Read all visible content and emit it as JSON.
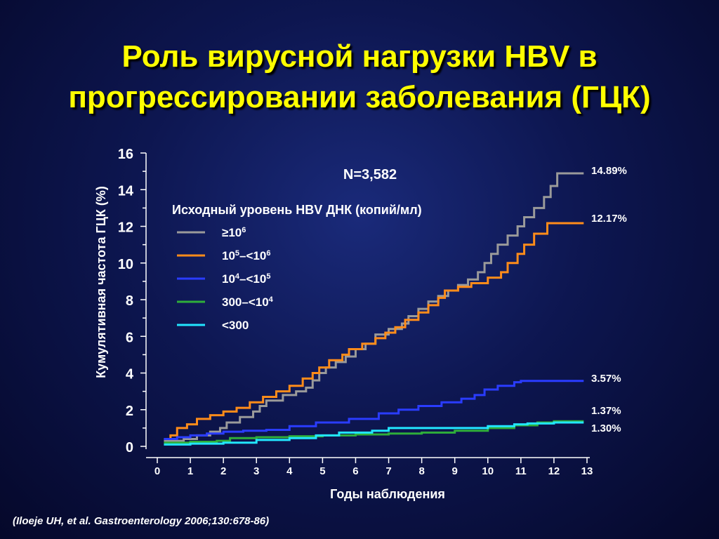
{
  "title": {
    "line1": "Роль вирусной нагрузки HBV в",
    "line2": "прогрессировании заболевания (ГЦК)"
  },
  "citation": "(Iloeje UH, et al. Gastroenterology 2006;130:678-86)",
  "colors": {
    "title": "#ffff00",
    "grey_series": "#9a9a9a",
    "orange_series": "#ff8c1a",
    "blue_series": "#2a3cff",
    "green_series": "#2fae3a",
    "cyan_series": "#22e6ff"
  },
  "chart_data": {
    "type": "line",
    "line_style": "step",
    "ylabel": "Кумулятивная частота ГЦК (%)",
    "xlabel": "Годы наблюдения",
    "annotation": "N=3,582",
    "legend_title": "Исходный уровень HBV ДНК (копий/мл)",
    "legend_position": "top-left",
    "xlim": [
      0,
      13
    ],
    "ylim": [
      0,
      16
    ],
    "x_ticks": [
      0,
      1,
      2,
      3,
      4,
      5,
      6,
      7,
      8,
      9,
      10,
      11,
      12,
      13
    ],
    "y_ticks": [
      0,
      2,
      4,
      6,
      8,
      10,
      12,
      14,
      16
    ],
    "series": [
      {
        "name": "≥10^6",
        "legend_base": "≥10",
        "legend_sup1": "6",
        "legend_mid": "",
        "legend_sup2": "",
        "color": "#9a9a9a",
        "end_label": "14.89%",
        "points": [
          [
            0.2,
            0.3
          ],
          [
            0.5,
            0.3
          ],
          [
            0.8,
            0.4
          ],
          [
            1.2,
            0.6
          ],
          [
            1.6,
            0.8
          ],
          [
            1.9,
            1.0
          ],
          [
            2.1,
            1.3
          ],
          [
            2.5,
            1.6
          ],
          [
            2.9,
            1.9
          ],
          [
            3.1,
            2.2
          ],
          [
            3.3,
            2.5
          ],
          [
            3.8,
            2.8
          ],
          [
            4.2,
            3.0
          ],
          [
            4.5,
            3.2
          ],
          [
            4.7,
            3.6
          ],
          [
            4.9,
            4.0
          ],
          [
            5.1,
            4.3
          ],
          [
            5.4,
            4.6
          ],
          [
            5.7,
            4.9
          ],
          [
            6.0,
            5.3
          ],
          [
            6.3,
            5.6
          ],
          [
            6.6,
            6.1
          ],
          [
            7.0,
            6.4
          ],
          [
            7.4,
            6.7
          ],
          [
            7.6,
            7.1
          ],
          [
            7.9,
            7.5
          ],
          [
            8.2,
            7.9
          ],
          [
            8.5,
            8.2
          ],
          [
            8.8,
            8.5
          ],
          [
            9.1,
            8.8
          ],
          [
            9.4,
            9.1
          ],
          [
            9.7,
            9.5
          ],
          [
            9.9,
            10.0
          ],
          [
            10.1,
            10.5
          ],
          [
            10.3,
            11.0
          ],
          [
            10.6,
            11.5
          ],
          [
            10.9,
            12.0
          ],
          [
            11.1,
            12.5
          ],
          [
            11.4,
            13.0
          ],
          [
            11.7,
            13.6
          ],
          [
            11.9,
            14.2
          ],
          [
            12.1,
            14.89
          ],
          [
            12.9,
            14.89
          ]
        ]
      },
      {
        "name": "10^5–<10^6",
        "legend_base": "10",
        "legend_sup1": "5",
        "legend_mid": "–<10",
        "legend_sup2": "6",
        "color": "#ff8c1a",
        "end_label": "12.17%",
        "points": [
          [
            0.2,
            0.4
          ],
          [
            0.4,
            0.6
          ],
          [
            0.6,
            1.0
          ],
          [
            0.9,
            1.2
          ],
          [
            1.2,
            1.5
          ],
          [
            1.6,
            1.7
          ],
          [
            2.0,
            1.9
          ],
          [
            2.4,
            2.1
          ],
          [
            2.8,
            2.4
          ],
          [
            3.2,
            2.7
          ],
          [
            3.6,
            3.0
          ],
          [
            4.0,
            3.3
          ],
          [
            4.4,
            3.7
          ],
          [
            4.7,
            4.0
          ],
          [
            4.9,
            4.3
          ],
          [
            5.2,
            4.7
          ],
          [
            5.6,
            5.0
          ],
          [
            5.8,
            5.3
          ],
          [
            6.2,
            5.6
          ],
          [
            6.6,
            5.9
          ],
          [
            6.9,
            6.2
          ],
          [
            7.2,
            6.5
          ],
          [
            7.5,
            6.9
          ],
          [
            7.9,
            7.3
          ],
          [
            8.2,
            7.7
          ],
          [
            8.5,
            8.1
          ],
          [
            8.7,
            8.5
          ],
          [
            9.1,
            8.7
          ],
          [
            9.5,
            8.9
          ],
          [
            10.0,
            9.2
          ],
          [
            10.4,
            9.5
          ],
          [
            10.6,
            10.0
          ],
          [
            10.9,
            10.5
          ],
          [
            11.1,
            11.0
          ],
          [
            11.4,
            11.6
          ],
          [
            11.8,
            12.17
          ],
          [
            12.9,
            12.17
          ]
        ]
      },
      {
        "name": "10^4–<10^5",
        "legend_base": "10",
        "legend_sup1": "4",
        "legend_mid": "–<10",
        "legend_sup2": "5",
        "color": "#2a3cff",
        "end_label": "3.57%",
        "points": [
          [
            0.2,
            0.4
          ],
          [
            0.6,
            0.5
          ],
          [
            1.0,
            0.6
          ],
          [
            1.5,
            0.7
          ],
          [
            2.0,
            0.8
          ],
          [
            2.6,
            0.85
          ],
          [
            3.3,
            0.9
          ],
          [
            4.0,
            1.1
          ],
          [
            4.8,
            1.3
          ],
          [
            5.8,
            1.5
          ],
          [
            6.7,
            1.8
          ],
          [
            7.3,
            2.0
          ],
          [
            7.9,
            2.2
          ],
          [
            8.6,
            2.4
          ],
          [
            9.2,
            2.6
          ],
          [
            9.6,
            2.8
          ],
          [
            9.9,
            3.1
          ],
          [
            10.3,
            3.3
          ],
          [
            10.8,
            3.5
          ],
          [
            11.0,
            3.57
          ],
          [
            12.9,
            3.57
          ]
        ]
      },
      {
        "name": "300–<10^4",
        "legend_base": "300–<10",
        "legend_sup1": "4",
        "legend_mid": "",
        "legend_sup2": "",
        "color": "#2fae3a",
        "end_label": "1.37%",
        "points": [
          [
            0.2,
            0.2
          ],
          [
            1.0,
            0.25
          ],
          [
            1.8,
            0.3
          ],
          [
            2.2,
            0.45
          ],
          [
            3.0,
            0.5
          ],
          [
            4.0,
            0.55
          ],
          [
            5.0,
            0.6
          ],
          [
            6.0,
            0.65
          ],
          [
            7.0,
            0.7
          ],
          [
            8.0,
            0.75
          ],
          [
            9.0,
            0.85
          ],
          [
            10.0,
            1.0
          ],
          [
            10.8,
            1.15
          ],
          [
            11.5,
            1.3
          ],
          [
            12.0,
            1.37
          ],
          [
            12.9,
            1.37
          ]
        ]
      },
      {
        "name": "<300",
        "legend_base": "<300",
        "legend_sup1": "",
        "legend_mid": "",
        "legend_sup2": "",
        "color": "#22e6ff",
        "end_label": "1.30%",
        "points": [
          [
            0.2,
            0.1
          ],
          [
            1.0,
            0.15
          ],
          [
            2.0,
            0.2
          ],
          [
            3.0,
            0.35
          ],
          [
            4.0,
            0.45
          ],
          [
            4.8,
            0.6
          ],
          [
            5.5,
            0.75
          ],
          [
            6.5,
            0.85
          ],
          [
            7.0,
            1.0
          ],
          [
            8.0,
            1.0
          ],
          [
            9.0,
            1.0
          ],
          [
            10.0,
            1.1
          ],
          [
            10.8,
            1.2
          ],
          [
            11.2,
            1.25
          ],
          [
            12.0,
            1.3
          ],
          [
            12.9,
            1.3
          ]
        ]
      }
    ]
  }
}
